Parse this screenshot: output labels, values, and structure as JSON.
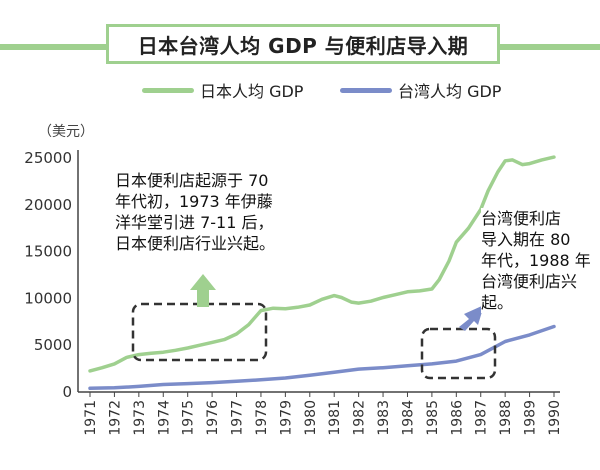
{
  "title": "日本台湾人均 GDP 与便利店导入期",
  "unit": "（美元）",
  "legend": {
    "japan": "日本人均 GDP",
    "taiwan": "台湾人均 GDP"
  },
  "annotations": {
    "japan_note": "日本便利店起源于 70\n年代初，1973 年伊藤\n洋华堂引进 7-11 后，\n日本便利店行业兴起。",
    "taiwan_note": "台湾便利店\n导入期在 80\n年代，1988 年\n台湾便利店兴起。"
  },
  "colors": {
    "japan": "#9fd08f",
    "taiwan": "#7b8cc9",
    "accent": "#9fd08f"
  },
  "chart_data": {
    "type": "line",
    "title": "日本台湾人均 GDP 与便利店导入期",
    "ylabel": "（美元）",
    "ylim": [
      0,
      25000
    ],
    "yticks": [
      "0",
      "5000",
      "10000",
      "15000",
      "20000",
      "25000"
    ],
    "categories": [
      "1971",
      "1972",
      "1973",
      "1974",
      "1975",
      "1976",
      "1977",
      "1978",
      "1979",
      "1980",
      "1981",
      "1982",
      "1983",
      "1984",
      "1985",
      "1986",
      "1987",
      "1988",
      "1989",
      "1990"
    ],
    "series": [
      {
        "name": "日本人均 GDP",
        "x": [
          1971,
          1971.5,
          1972,
          1972.5,
          1973,
          1973.5,
          1974,
          1974.5,
          1975,
          1975.5,
          1976,
          1976.5,
          1977,
          1977.5,
          1978,
          1978.5,
          1979,
          1979.5,
          1980,
          1980.5,
          1981,
          1981.3,
          1981.7,
          1982,
          1982.5,
          1983,
          1983.5,
          1984,
          1984.5,
          1985,
          1985.3,
          1985.7,
          1986,
          1986.5,
          1987,
          1987.3,
          1987.7,
          1988,
          1988.3,
          1988.7,
          1989,
          1989.5,
          1990
        ],
        "values": [
          2250,
          2600,
          3000,
          3700,
          4000,
          4150,
          4250,
          4450,
          4700,
          5000,
          5300,
          5600,
          6200,
          7200,
          8700,
          8950,
          8900,
          9050,
          9300,
          9900,
          10300,
          10100,
          9600,
          9500,
          9700,
          10100,
          10400,
          10700,
          10800,
          11000,
          12000,
          14000,
          16000,
          17500,
          19500,
          21500,
          23500,
          24700,
          24800,
          24300,
          24400,
          24800,
          25100
        ]
      },
      {
        "name": "台湾人均 GDP",
        "x": [
          1971,
          1972,
          1973,
          1974,
          1975,
          1976,
          1977,
          1978,
          1979,
          1980,
          1981,
          1982,
          1983,
          1984,
          1985,
          1986,
          1987,
          1988,
          1989,
          1990
        ],
        "values": [
          400,
          450,
          600,
          800,
          900,
          1000,
          1150,
          1300,
          1500,
          1800,
          2100,
          2450,
          2600,
          2800,
          3000,
          3300,
          4000,
          5400,
          6100,
          7000
        ]
      }
    ]
  }
}
